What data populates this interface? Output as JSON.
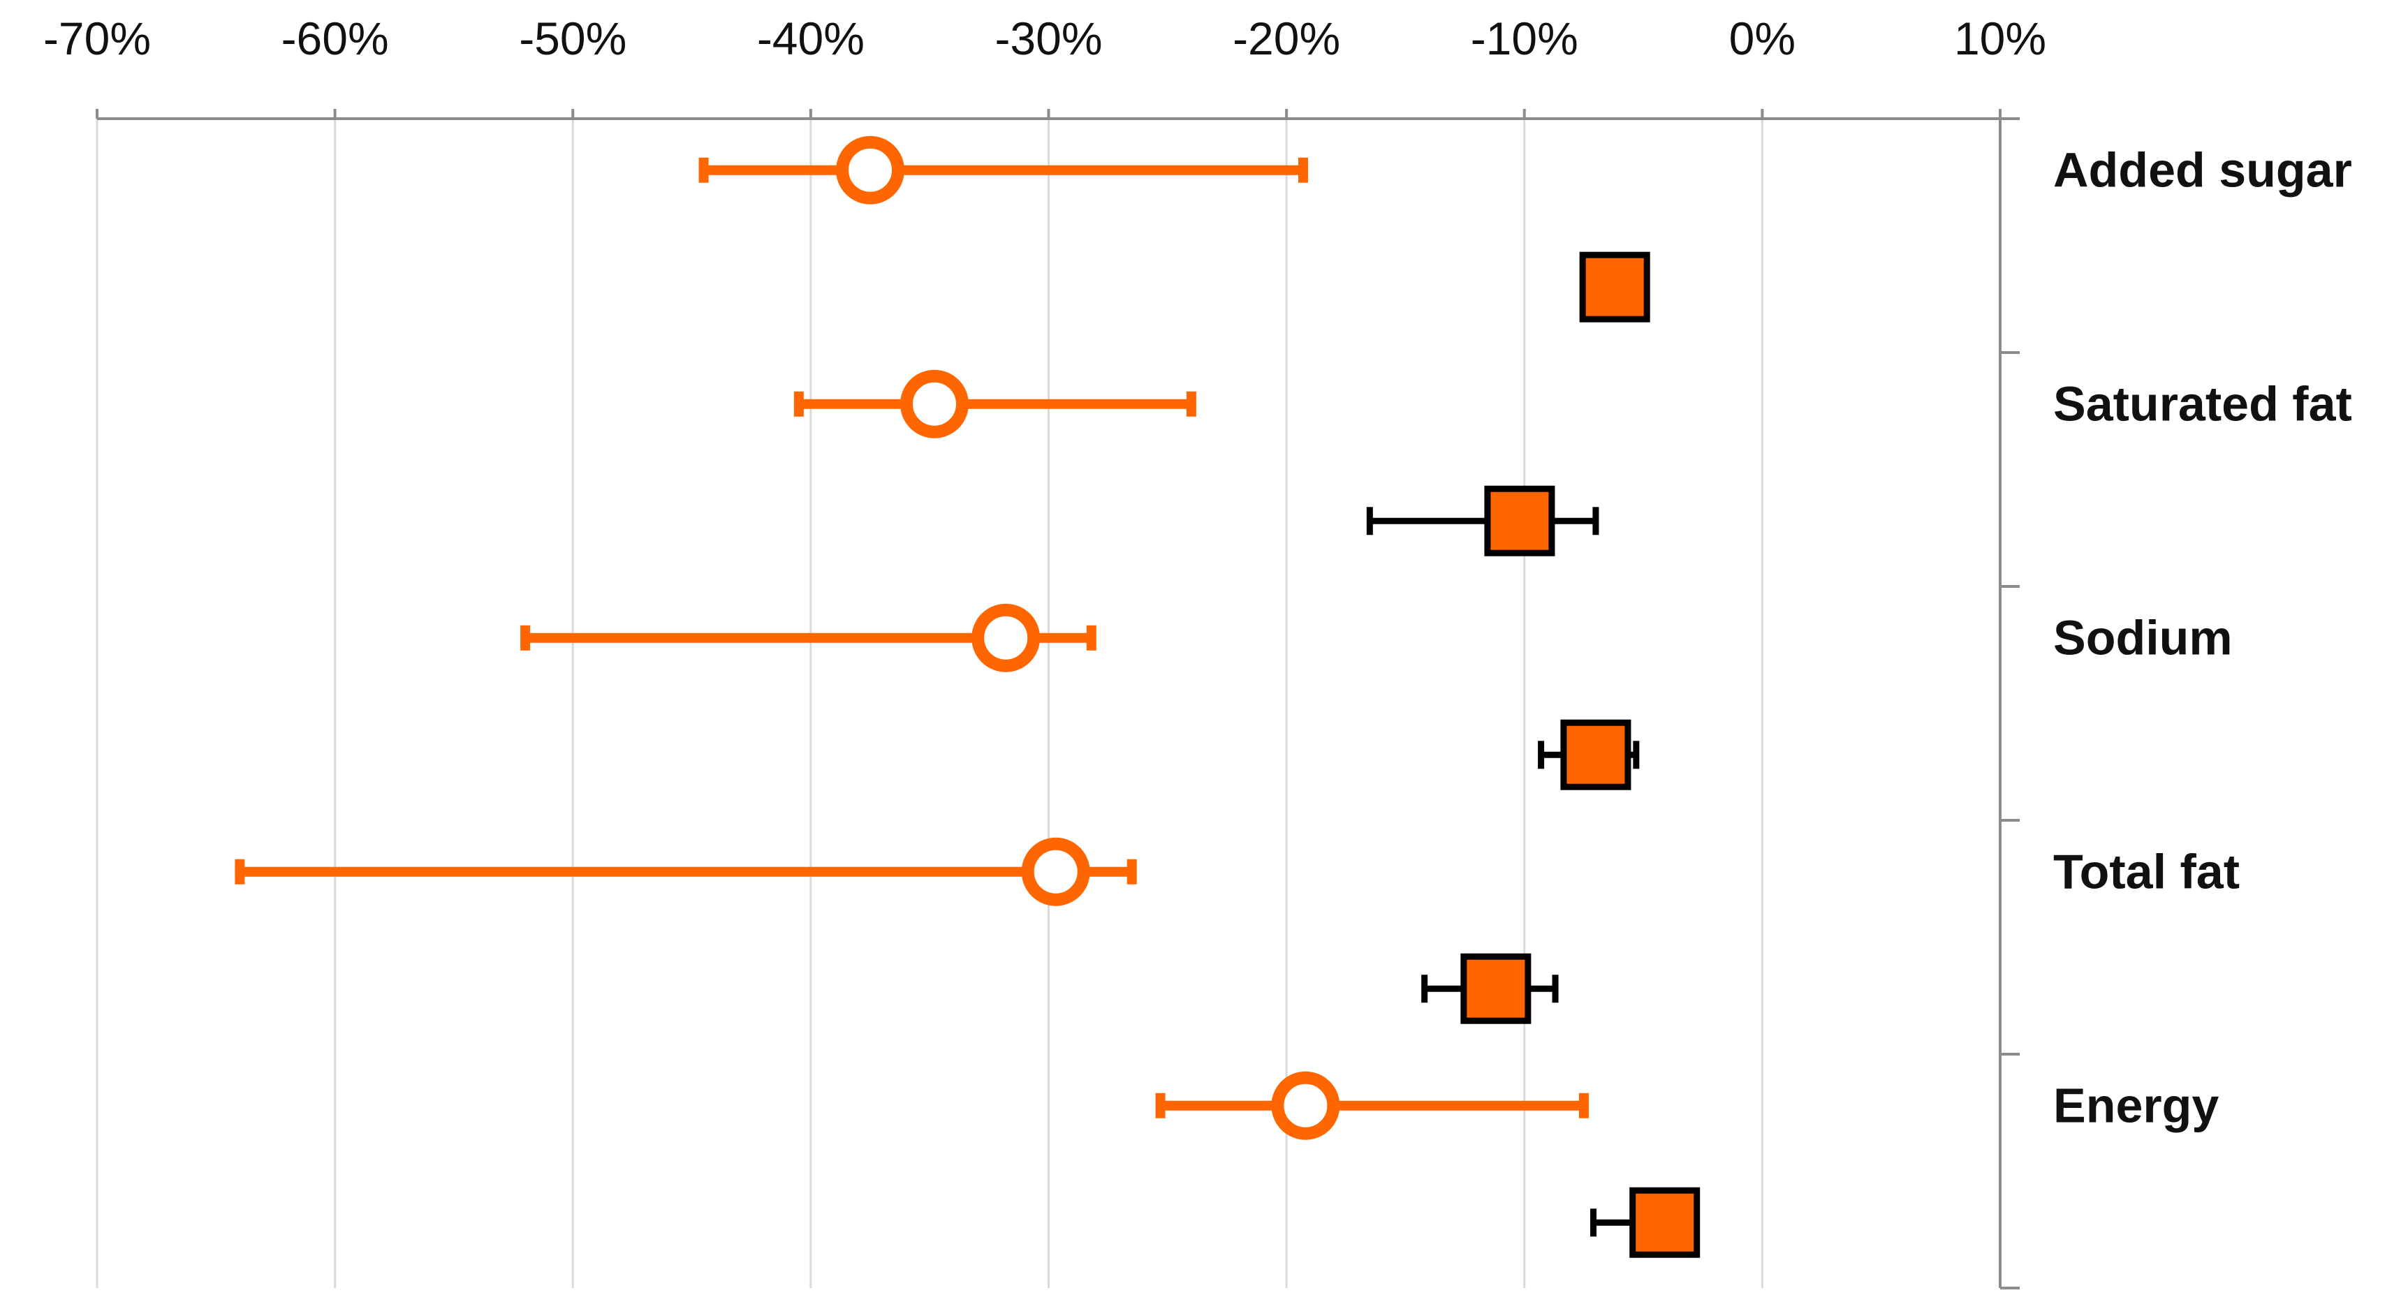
{
  "chart_data": {
    "type": "scatter",
    "title": "",
    "xlabel": "",
    "ylabel": "",
    "xlim": [
      -0.7,
      0.1
    ],
    "x_ticks": [
      -0.7,
      -0.6,
      -0.5,
      -0.4,
      -0.3,
      -0.2,
      -0.1,
      0,
      0.1
    ],
    "x_tick_labels": [
      "-70%",
      "-60%",
      "-50%",
      "-40%",
      "-30%",
      "-20%",
      "-10%",
      "0%",
      "10%"
    ],
    "x_axis_position": "top",
    "y_axis_position": "right",
    "grid": "vertical",
    "categories": [
      "Added sugar",
      "Saturated fat",
      "Sodium",
      "Total fat",
      "Energy"
    ],
    "series": [
      {
        "marker": "open-circle",
        "color": "#FF6600",
        "error_bar_color": "#FF6600",
        "points": [
          {
            "category": "Added sugar",
            "value": -0.375,
            "low": -0.445,
            "high": -0.193
          },
          {
            "category": "Saturated fat",
            "value": -0.348,
            "low": -0.405,
            "high": -0.24
          },
          {
            "category": "Sodium",
            "value": -0.318,
            "low": -0.52,
            "high": -0.282
          },
          {
            "category": "Total fat",
            "value": -0.297,
            "low": -0.64,
            "high": -0.265
          },
          {
            "category": "Energy",
            "value": -0.192,
            "low": -0.253,
            "high": -0.075
          }
        ]
      },
      {
        "marker": "square",
        "color": "#FF6600",
        "error_bar_color": "#000000",
        "points": [
          {
            "category": "Added sugar",
            "value": -0.062,
            "low": -0.075,
            "high": -0.055
          },
          {
            "category": "Saturated fat",
            "value": -0.102,
            "low": -0.165,
            "high": -0.07
          },
          {
            "category": "Sodium",
            "value": -0.07,
            "low": -0.093,
            "high": -0.053
          },
          {
            "category": "Total fat",
            "value": -0.112,
            "low": -0.142,
            "high": -0.087
          },
          {
            "category": "Energy",
            "value": -0.041,
            "low": -0.071,
            "high": -0.035
          }
        ]
      }
    ]
  }
}
